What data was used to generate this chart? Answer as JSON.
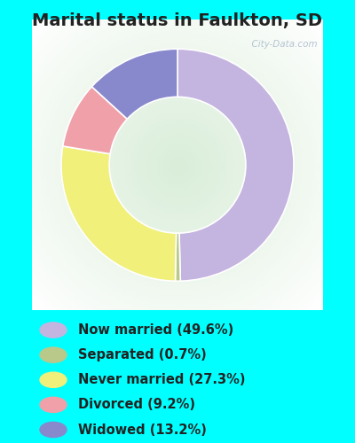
{
  "title": "Marital status in Faulkton, SD",
  "slices": [
    49.6,
    0.7,
    27.3,
    9.2,
    13.2
  ],
  "labels": [
    "Now married (49.6%)",
    "Separated (0.7%)",
    "Never married (27.3%)",
    "Divorced (9.2%)",
    "Widowed (13.2%)"
  ],
  "colors": [
    "#c4b4e0",
    "#b8c98a",
    "#f0f07a",
    "#f0a0a8",
    "#8888cc"
  ],
  "outer_bg": "#00ffff",
  "chart_bg_left": "#c8e8c8",
  "chart_bg_right": "#e8f8e8",
  "title_fontsize": 14,
  "legend_fontsize": 10.5,
  "watermark": "  City-Data.com",
  "startangle": 90,
  "donut_width": 0.38
}
